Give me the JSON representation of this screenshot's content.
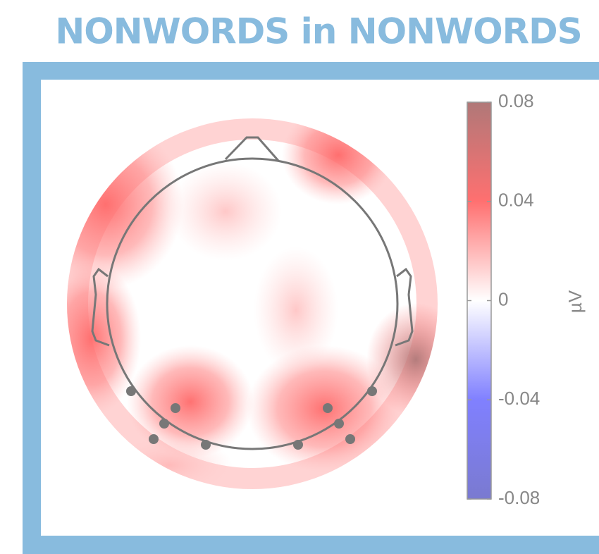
{
  "chart_data": {
    "type": "topoplot",
    "title": "NONWORDS in NONWORDS",
    "colorbar_label": "µV",
    "clim": [
      -0.08,
      0.08
    ],
    "cticks": [
      0.08,
      0.04,
      0,
      -0.04,
      -0.08
    ],
    "colormap": [
      "#7a7ad0",
      "#8080ff",
      "#ffffff",
      "#ff7070",
      "#b07878"
    ]
  }
}
